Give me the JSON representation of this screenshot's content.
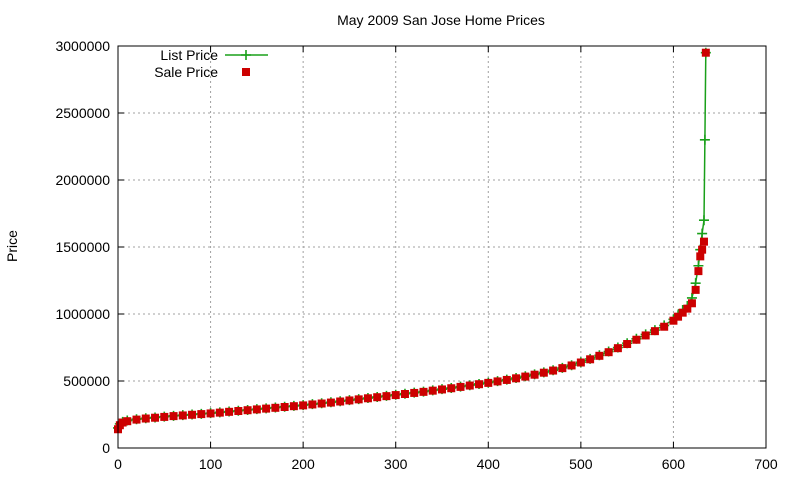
{
  "chart_data": {
    "type": "scatter",
    "title": "May 2009 San Jose Home Prices",
    "xlabel": "",
    "ylabel": "Price",
    "xlim": [
      0,
      700
    ],
    "ylim": [
      0,
      3000000
    ],
    "x_ticks": [
      "0",
      "100",
      "200",
      "300",
      "400",
      "500",
      "600",
      "700"
    ],
    "y_ticks": [
      "0",
      "500000",
      "1000000",
      "1500000",
      "2000000",
      "2500000",
      "3000000"
    ],
    "grid": true,
    "legend_position": "top-left",
    "series": [
      {
        "name": "List Price",
        "color": "#1aa01a",
        "marker": "plus",
        "line": true,
        "x": [
          0,
          2,
          5,
          10,
          20,
          30,
          40,
          50,
          60,
          70,
          80,
          90,
          100,
          110,
          120,
          130,
          140,
          150,
          160,
          170,
          180,
          190,
          200,
          210,
          220,
          230,
          240,
          250,
          260,
          270,
          280,
          290,
          300,
          310,
          320,
          330,
          340,
          350,
          360,
          370,
          380,
          390,
          400,
          410,
          420,
          430,
          440,
          450,
          460,
          470,
          480,
          490,
          500,
          510,
          520,
          530,
          540,
          550,
          560,
          570,
          580,
          590,
          600,
          605,
          610,
          615,
          620,
          624,
          627,
          629,
          631,
          633,
          634,
          635
        ],
        "y": [
          150000,
          180000,
          195000,
          205000,
          215000,
          222000,
          228000,
          234000,
          240000,
          245000,
          250000,
          255000,
          260000,
          266000,
          272000,
          278000,
          284000,
          290000,
          296000,
          302000,
          308000,
          314000,
          320000,
          327000,
          334000,
          341000,
          349000,
          357000,
          365000,
          373000,
          381000,
          389000,
          397000,
          405000,
          413000,
          421000,
          430000,
          439000,
          448000,
          458000,
          468000,
          478000,
          488000,
          499000,
          510000,
          522000,
          535000,
          549000,
          564000,
          580000,
          598000,
          618000,
          640000,
          665000,
          692000,
          720000,
          750000,
          782000,
          815000,
          848000,
          880000,
          915000,
          960000,
          990000,
          1030000,
          1060000,
          1120000,
          1230000,
          1360000,
          1480000,
          1600000,
          1700000,
          2300000,
          2950000
        ]
      },
      {
        "name": "Sale Price",
        "color": "#cc0000",
        "marker": "square",
        "line": false,
        "x": [
          0,
          2,
          5,
          10,
          20,
          30,
          40,
          50,
          60,
          70,
          80,
          90,
          100,
          110,
          120,
          130,
          140,
          150,
          160,
          170,
          180,
          190,
          200,
          210,
          220,
          230,
          240,
          250,
          260,
          270,
          280,
          290,
          300,
          310,
          320,
          330,
          340,
          350,
          360,
          370,
          380,
          390,
          400,
          410,
          420,
          430,
          440,
          450,
          460,
          470,
          480,
          490,
          500,
          510,
          520,
          530,
          540,
          550,
          560,
          570,
          580,
          590,
          600,
          605,
          610,
          615,
          620,
          624,
          627,
          629,
          631,
          633,
          635
        ],
        "y": [
          140000,
          170000,
          190000,
          200000,
          212000,
          220000,
          226000,
          232000,
          238000,
          243000,
          248000,
          253000,
          258000,
          264000,
          270000,
          276000,
          282000,
          288000,
          294000,
          300000,
          306000,
          312000,
          318000,
          325000,
          332000,
          339000,
          347000,
          355000,
          363000,
          371000,
          379000,
          387000,
          395000,
          403000,
          411000,
          419000,
          428000,
          437000,
          446000,
          456000,
          466000,
          476000,
          486000,
          497000,
          508000,
          520000,
          533000,
          547000,
          562000,
          578000,
          596000,
          616000,
          638000,
          662000,
          688000,
          715000,
          745000,
          776000,
          808000,
          840000,
          872000,
          905000,
          950000,
          980000,
          1010000,
          1040000,
          1080000,
          1180000,
          1320000,
          1430000,
          1480000,
          1540000,
          2950000
        ]
      }
    ]
  }
}
